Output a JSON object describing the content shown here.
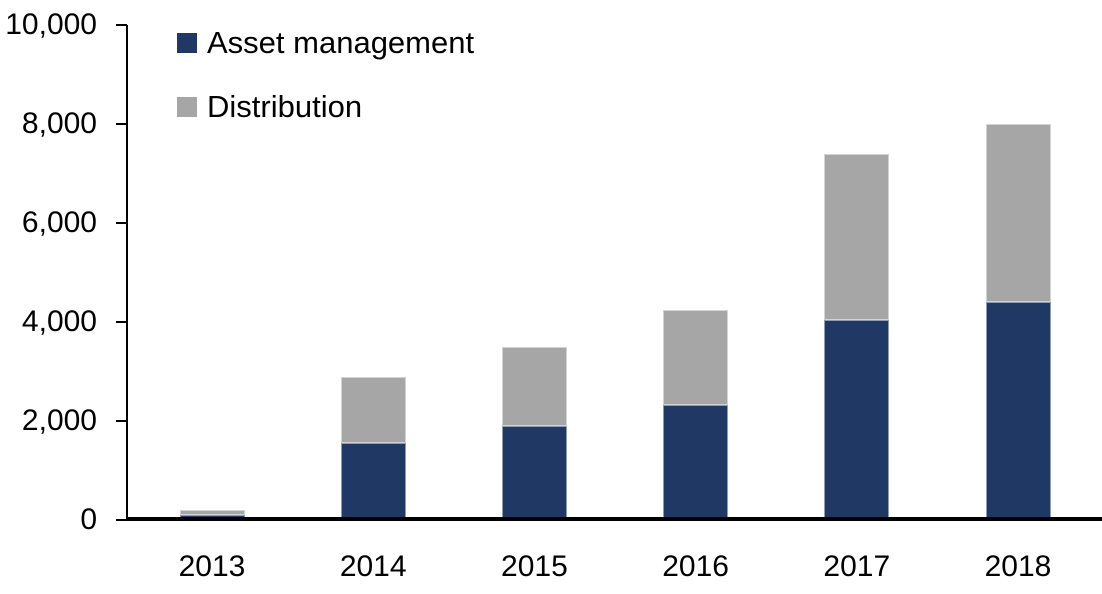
{
  "chart_data": {
    "type": "bar",
    "stacked": true,
    "title": "",
    "xlabel": "",
    "ylabel": "",
    "categories": [
      "2013",
      "2014",
      "2015",
      "2016",
      "2017",
      "2018"
    ],
    "series": [
      {
        "name": "Asset management",
        "color": "#1F3864",
        "values": [
          100,
          1550,
          1900,
          2320,
          4050,
          4400
        ]
      },
      {
        "name": "Distribution",
        "color": "#A6A6A6",
        "values": [
          100,
          1330,
          1600,
          1930,
          3350,
          3600
        ]
      }
    ],
    "ylim": [
      0,
      10000
    ],
    "ytick_interval": 2000,
    "ytick_labels": [
      "0",
      "2,000",
      "4,000",
      "6,000",
      "8,000",
      "10,000"
    ],
    "grid": false,
    "legend_position": "top-left-inside"
  },
  "colors": {
    "axis": "#000000",
    "background": "#FFFFFF"
  }
}
